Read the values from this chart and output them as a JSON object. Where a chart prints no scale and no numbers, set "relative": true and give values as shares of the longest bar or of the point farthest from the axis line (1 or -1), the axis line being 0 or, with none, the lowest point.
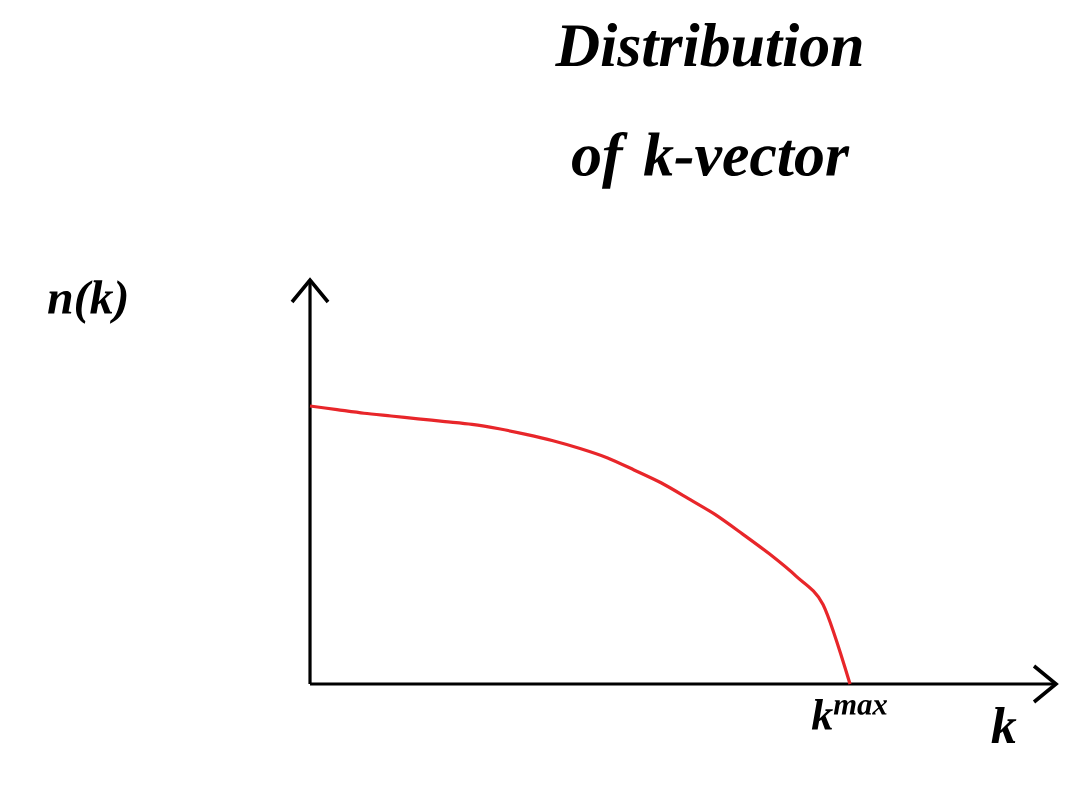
{
  "chart_data": {
    "type": "line",
    "title": "Distribution of k-vector",
    "xlabel": "k",
    "ylabel": "n(k)",
    "annotations": [
      "k$^{max}$"
    ],
    "categories": [
      null,
      null,
      null,
      null,
      null,
      null,
      null,
      null,
      null,
      null,
      null,
      null,
      null,
      null,
      null,
      null,
      null,
      null,
      null,
      null,
      null
    ],
    "values": [
      1.0,
      0.987,
      0.974,
      0.964,
      0.954,
      0.944,
      0.934,
      0.918,
      0.898,
      0.875,
      0.847,
      0.814,
      0.77,
      0.724,
      0.668,
      0.61,
      0.541,
      0.469,
      0.388,
      0.286,
      0.0
    ],
    "color": "#e8262a",
    "relative": true
  }
}
